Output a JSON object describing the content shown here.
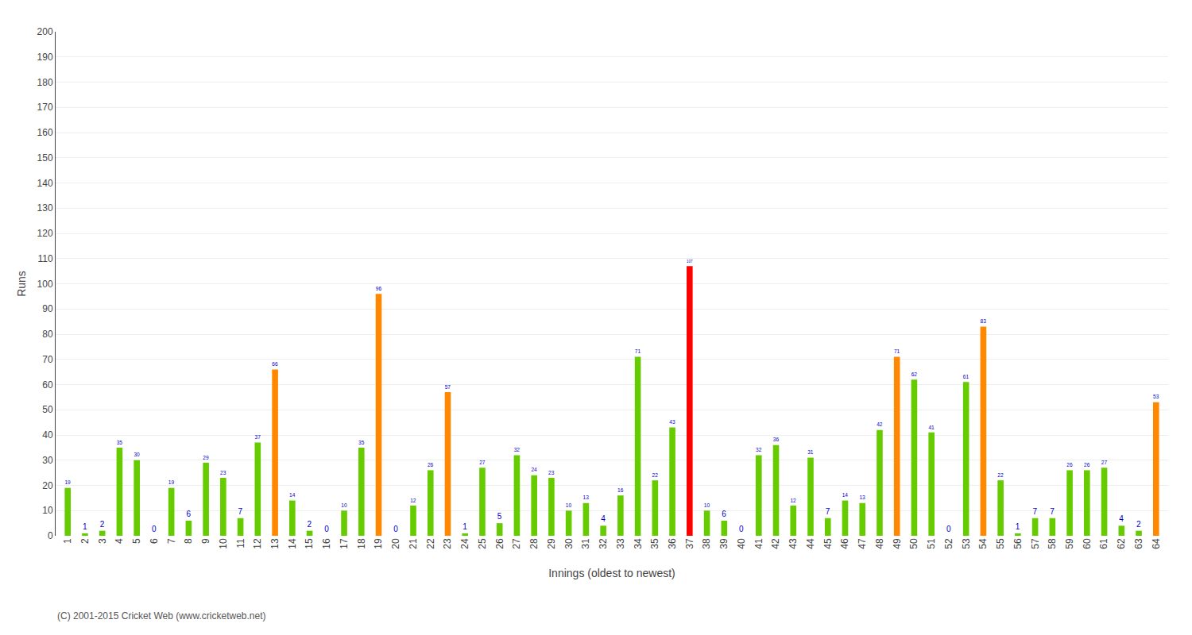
{
  "chart_data": {
    "type": "bar",
    "xlabel": "Innings (oldest to newest)",
    "ylabel": "Runs",
    "categories": [
      "1",
      "2",
      "3",
      "4",
      "5",
      "6",
      "7",
      "8",
      "9",
      "10",
      "11",
      "12",
      "13",
      "14",
      "15",
      "16",
      "17",
      "18",
      "19",
      "20",
      "21",
      "22",
      "23",
      "24",
      "25",
      "26",
      "27",
      "28",
      "29",
      "30",
      "31",
      "32",
      "33",
      "34",
      "35",
      "36",
      "37",
      "38",
      "39",
      "40",
      "41",
      "42",
      "43",
      "44",
      "45",
      "46",
      "47",
      "48",
      "49",
      "50",
      "51",
      "52",
      "53",
      "54",
      "55",
      "56",
      "57",
      "58",
      "59",
      "60",
      "61",
      "62",
      "63",
      "64"
    ],
    "values": [
      19,
      1,
      2,
      35,
      30,
      0,
      19,
      6,
      29,
      23,
      7,
      37,
      66,
      14,
      2,
      0,
      10,
      35,
      96,
      0,
      12,
      26,
      57,
      1,
      27,
      5,
      32,
      24,
      23,
      10,
      13,
      4,
      16,
      71,
      22,
      43,
      107,
      10,
      6,
      0,
      32,
      36,
      12,
      31,
      7,
      14,
      13,
      42,
      71,
      62,
      41,
      0,
      61,
      83,
      22,
      1,
      7,
      7,
      26,
      26,
      27,
      4,
      2,
      53
    ],
    "colors": [
      "#66cc00",
      "#66cc00",
      "#66cc00",
      "#66cc00",
      "#66cc00",
      "#66cc00",
      "#66cc00",
      "#66cc00",
      "#66cc00",
      "#66cc00",
      "#66cc00",
      "#66cc00",
      "#ff8800",
      "#66cc00",
      "#66cc00",
      "#66cc00",
      "#66cc00",
      "#66cc00",
      "#ff8800",
      "#66cc00",
      "#66cc00",
      "#66cc00",
      "#ff8800",
      "#66cc00",
      "#66cc00",
      "#66cc00",
      "#66cc00",
      "#66cc00",
      "#66cc00",
      "#66cc00",
      "#66cc00",
      "#66cc00",
      "#66cc00",
      "#66cc00",
      "#66cc00",
      "#66cc00",
      "#ff0000",
      "#66cc00",
      "#66cc00",
      "#66cc00",
      "#66cc00",
      "#66cc00",
      "#66cc00",
      "#66cc00",
      "#66cc00",
      "#66cc00",
      "#66cc00",
      "#66cc00",
      "#ff8800",
      "#66cc00",
      "#66cc00",
      "#66cc00",
      "#66cc00",
      "#ff8800",
      "#66cc00",
      "#66cc00",
      "#66cc00",
      "#66cc00",
      "#66cc00",
      "#66cc00",
      "#66cc00",
      "#66cc00",
      "#66cc00",
      "#ff8800"
    ],
    "ylim": [
      0,
      200
    ],
    "yticks": [
      0,
      10,
      20,
      30,
      40,
      50,
      60,
      70,
      80,
      90,
      100,
      110,
      120,
      130,
      140,
      150,
      160,
      170,
      180,
      190,
      200
    ],
    "grid": true,
    "data_labels": true,
    "annotations": [
      "(C) 2001-2015 Cricket Web (www.cricketweb.net)"
    ]
  }
}
